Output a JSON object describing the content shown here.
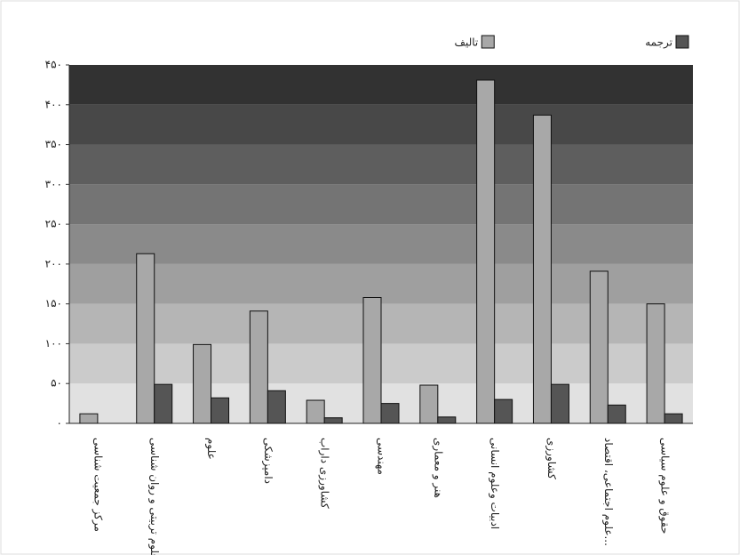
{
  "chart_data": {
    "type": "bar",
    "categories": [
      "مرکز جمعیت شناسی",
      "علوم تربیتی و روان شناسی",
      "علوم",
      "دامپزشکی",
      "کشاورزی داراب",
      "مهندسی",
      "هنر و معماری",
      "ادبیات وعلوم انسانی",
      "کشاورزی",
      "علوم اجتماعی، اقتصاد...",
      "حقوق و علوم سیاسی"
    ],
    "series": [
      {
        "name": "تالیف",
        "color": "#a8a8a8",
        "values": [
          12,
          213,
          99,
          141,
          29,
          158,
          48,
          431,
          387,
          191,
          150
        ]
      },
      {
        "name": "ترجمه",
        "color": "#555555",
        "values": [
          0,
          49,
          32,
          41,
          7,
          25,
          8,
          30,
          49,
          23,
          12
        ]
      }
    ],
    "ylim": [
      0,
      450
    ],
    "yticks": [
      {
        "value": 0,
        "label": "۰"
      },
      {
        "value": 50,
        "label": "۵۰"
      },
      {
        "value": 100,
        "label": "۱۰۰"
      },
      {
        "value": 150,
        "label": "۱۵۰"
      },
      {
        "value": 200,
        "label": "۲۰۰"
      },
      {
        "value": 250,
        "label": "۲۵۰"
      },
      {
        "value": 300,
        "label": "۳۰۰"
      },
      {
        "value": 350,
        "label": "۳۵۰"
      },
      {
        "value": 400,
        "label": "۴۰۰"
      },
      {
        "value": 450,
        "label": "۴۵۰"
      }
    ],
    "legend": "top-right"
  }
}
